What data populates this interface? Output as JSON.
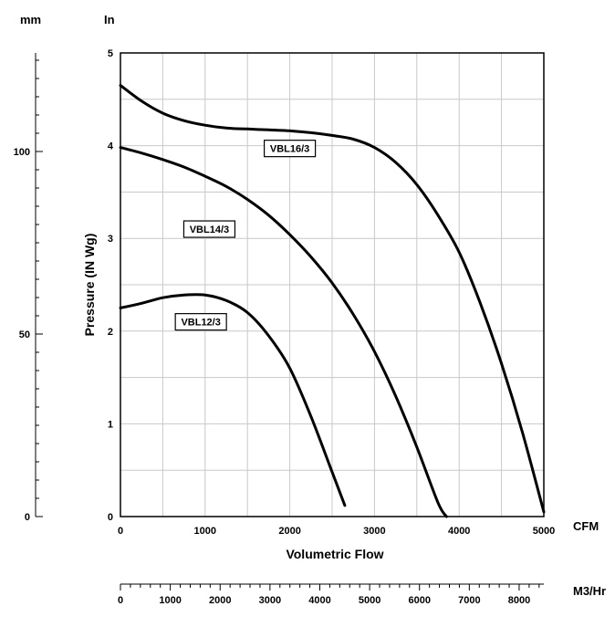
{
  "chart_data": {
    "type": "line",
    "xlabel": "Volumetric Flow",
    "ylabel": "Pressure (IN Wg)",
    "x_unit": "CFM",
    "xlim": [
      0,
      5000
    ],
    "ylim": [
      0,
      5
    ],
    "x_ticks": [
      0,
      1000,
      2000,
      3000,
      4000,
      5000
    ],
    "y_ticks": [
      0,
      1,
      2,
      3,
      4,
      5
    ],
    "grid": true,
    "left_axis": {
      "unit": "mm",
      "ticks": [
        0,
        50,
        100
      ]
    },
    "y_unit_label": "In",
    "bottom_axis": {
      "unit": "M3/Hr",
      "ticks": [
        0,
        1000,
        2000,
        3000,
        4000,
        5000,
        6000,
        7000,
        8000
      ]
    },
    "series": [
      {
        "name": "VBL16/3",
        "x": [
          0,
          250,
          500,
          750,
          1000,
          1250,
          1500,
          1750,
          2000,
          2250,
          2500,
          2750,
          3000,
          3250,
          3500,
          3750,
          4000,
          4250,
          4500,
          4750,
          5000
        ],
        "y": [
          4.65,
          4.48,
          4.35,
          4.27,
          4.22,
          4.19,
          4.18,
          4.17,
          4.16,
          4.14,
          4.11,
          4.07,
          3.98,
          3.82,
          3.58,
          3.25,
          2.85,
          2.3,
          1.65,
          0.9,
          0.05
        ]
      },
      {
        "name": "VBL14/3",
        "x": [
          0,
          250,
          500,
          750,
          1000,
          1250,
          1500,
          1750,
          2000,
          2250,
          2500,
          2750,
          3000,
          3250,
          3500,
          3750,
          3850
        ],
        "y": [
          3.98,
          3.92,
          3.85,
          3.77,
          3.67,
          3.56,
          3.42,
          3.25,
          3.04,
          2.8,
          2.52,
          2.18,
          1.78,
          1.3,
          0.75,
          0.15,
          0.0
        ]
      },
      {
        "name": "VBL12/3",
        "x": [
          0,
          250,
          500,
          750,
          1000,
          1250,
          1500,
          1750,
          2000,
          2250,
          2500,
          2650
        ],
        "y": [
          2.25,
          2.3,
          2.36,
          2.39,
          2.39,
          2.33,
          2.2,
          1.95,
          1.6,
          1.08,
          0.48,
          0.12
        ]
      }
    ]
  }
}
